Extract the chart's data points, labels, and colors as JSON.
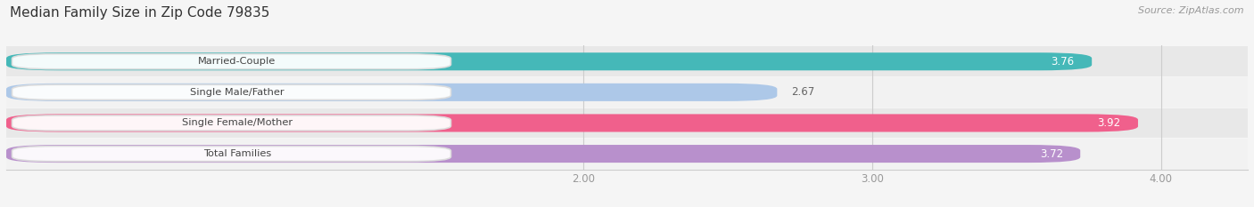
{
  "title": "Median Family Size in Zip Code 79835",
  "source": "Source: ZipAtlas.com",
  "categories": [
    "Married-Couple",
    "Single Male/Father",
    "Single Female/Mother",
    "Total Families"
  ],
  "values": [
    3.76,
    2.67,
    3.92,
    3.72
  ],
  "bar_colors": [
    "#45b8b8",
    "#adc8e8",
    "#f0608c",
    "#b890cc"
  ],
  "row_colors": [
    "#e8e8e8",
    "#f2f2f2",
    "#e8e8e8",
    "#f2f2f2"
  ],
  "xlim": [
    0,
    4.3
  ],
  "xticks": [
    2.0,
    3.0,
    4.0
  ],
  "xticklabels": [
    "2.00",
    "3.00",
    "4.00"
  ],
  "bar_height": 0.58,
  "fig_bg": "#f5f5f5",
  "value_outside": [
    false,
    true,
    false,
    false
  ],
  "title_fontsize": 11,
  "source_fontsize": 8
}
